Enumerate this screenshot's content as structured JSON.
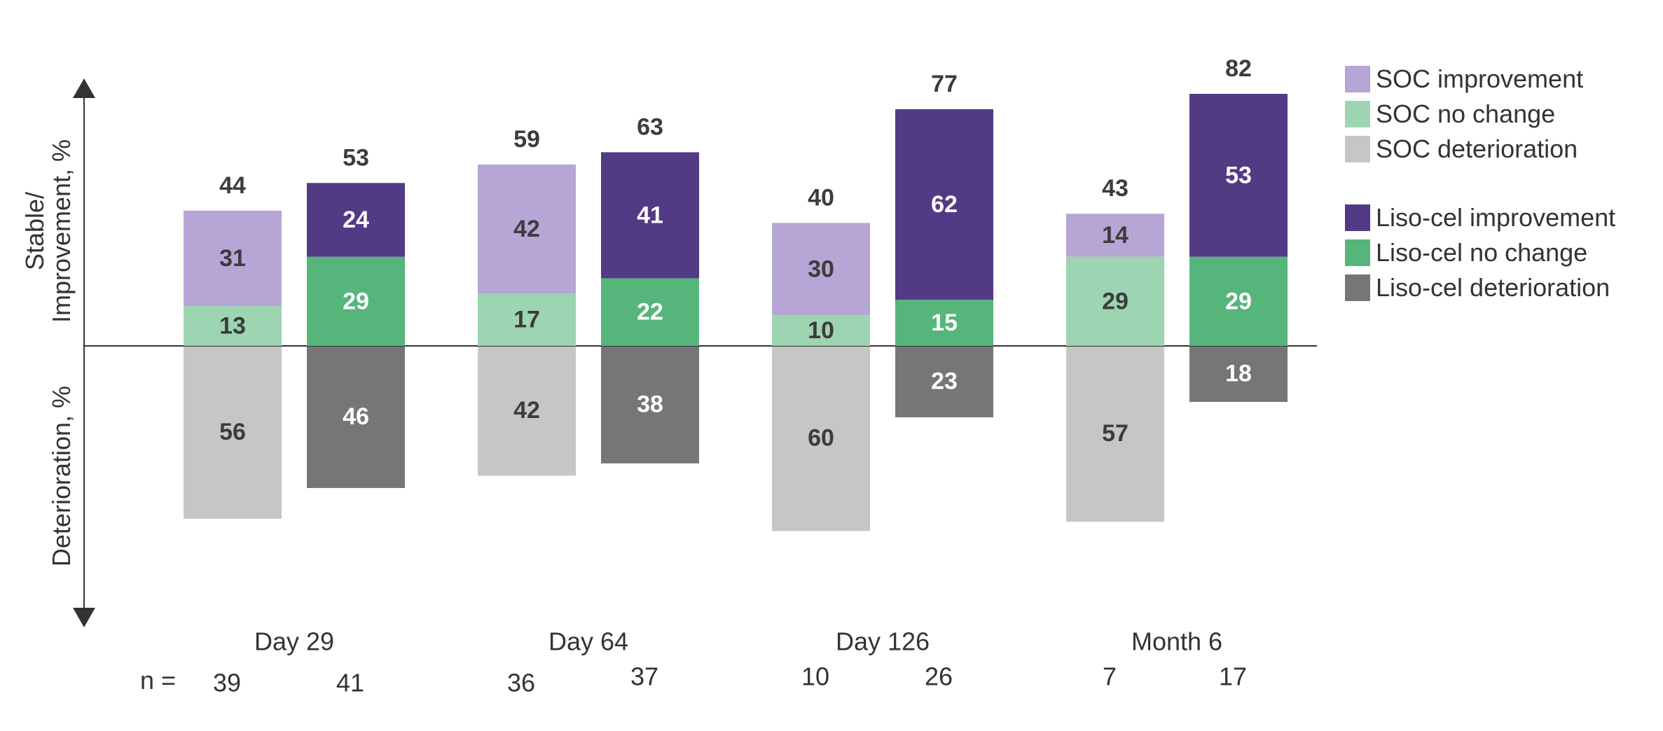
{
  "chart_data": {
    "type": "bar",
    "y_axis_label_up": [
      "Stable/",
      "Improvement, %"
    ],
    "y_axis_label_down": "Deterioration, %",
    "n_prefix": "n =",
    "groups": [
      {
        "label": "Day 29",
        "bars": [
          {
            "arm": "SOC",
            "improvement": 31,
            "no_change": 13,
            "deterioration": 56,
            "total": 44,
            "n": 39
          },
          {
            "arm": "Liso-cel",
            "improvement": 24,
            "no_change": 29,
            "deterioration": 46,
            "total": 53,
            "n": 41
          }
        ]
      },
      {
        "label": "Day 64",
        "bars": [
          {
            "arm": "SOC",
            "improvement": 42,
            "no_change": 17,
            "deterioration": 42,
            "total": 59,
            "n": 36
          },
          {
            "arm": "Liso-cel",
            "improvement": 41,
            "no_change": 22,
            "deterioration": 38,
            "total": 63,
            "n": 37
          }
        ]
      },
      {
        "label": "Day 126",
        "bars": [
          {
            "arm": "SOC",
            "improvement": 30,
            "no_change": 10,
            "deterioration": 60,
            "total": 40,
            "n": 10
          },
          {
            "arm": "Liso-cel",
            "improvement": 62,
            "no_change": 15,
            "deterioration": 23,
            "total": 77,
            "n": 26
          }
        ]
      },
      {
        "label": "Month 6",
        "bars": [
          {
            "arm": "SOC",
            "improvement": 14,
            "no_change": 29,
            "deterioration": 57,
            "total": 43,
            "n": 7
          },
          {
            "arm": "Liso-cel",
            "improvement": 53,
            "no_change": 29,
            "deterioration": 18,
            "total": 82,
            "n": 17
          }
        ]
      }
    ],
    "colors": {
      "SOC": {
        "improvement": "#b5a6d6",
        "no_change": "#9dd4b1",
        "deterioration": "#c6c6c6"
      },
      "Liso-cel": {
        "improvement": "#533a85",
        "no_change": "#56b57a",
        "deterioration": "#767676"
      }
    },
    "label_colors": {
      "SOC": "#3c3c3c",
      "Liso-cel": "#ffffff",
      "total": "#3c3c3c"
    },
    "legend": [
      {
        "label": "SOC improvement",
        "color": "#b5a6d6"
      },
      {
        "label": "SOC no change",
        "color": "#9dd4b1"
      },
      {
        "label": "SOC deterioration",
        "color": "#c6c6c6"
      },
      {
        "label": "Liso-cel improvement",
        "color": "#533a85"
      },
      {
        "label": "Liso-cel no change",
        "color": "#56b57a"
      },
      {
        "label": "Liso-cel deterioration",
        "color": "#767676"
      }
    ],
    "legend_position": "right",
    "grid": false
  }
}
